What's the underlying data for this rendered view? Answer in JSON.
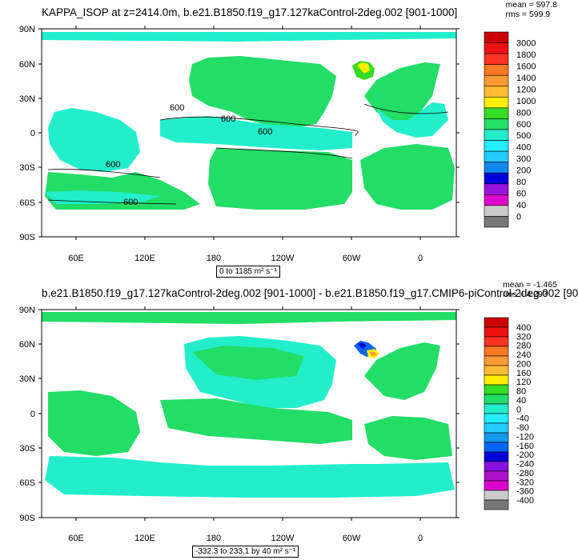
{
  "panel1": {
    "title": "KAPPA_ISOP at z=2414.0m, b.e21.B1850.f19_g17.127kaControl-2deg.002 [901-1000]",
    "mean_label": "mean = 597.8",
    "rms_label": "rms = 599.9",
    "range_label": "0 to 1185 m² s⁻¹",
    "contour_labels": [
      "600",
      "600",
      "600",
      "600",
      "600"
    ],
    "colorbar": {
      "labels": [
        "3000",
        "1800",
        "1600",
        "1400",
        "1200",
        "1000",
        "800",
        "600",
        "500",
        "400",
        "300",
        "200",
        "80",
        "60",
        "40",
        "0"
      ]
    }
  },
  "panel2": {
    "title": "b.e21.B1850.f19_g17.127kaControl-2deg.002 [901-1000] - b.e21.B1850.f19_g17.CMIP6-piControl-2deg.002 [90",
    "mean_label": "mean = -1.465",
    "rms_label": "rms = 4.293",
    "range_label": "-332.3 to 233.1 by 40 m² s⁻¹",
    "colorbar": {
      "labels": [
        "400",
        "320",
        "280",
        "240",
        "200",
        "160",
        "120",
        "80",
        "40",
        "0",
        "-40",
        "-80",
        "-120",
        "-160",
        "-200",
        "-240",
        "-280",
        "-320",
        "-360",
        "-400"
      ]
    }
  },
  "map": {
    "lat_labels": [
      "90N",
      "60N",
      "30N",
      "0",
      "30S",
      "60S",
      "90S"
    ],
    "lon_labels": [
      "60E",
      "120E",
      "180",
      "120W",
      "60W",
      "0"
    ]
  },
  "colors": {
    "colorbar1": [
      "#cc0000",
      "#ee1111",
      "#ff3322",
      "#ff7722",
      "#ff9933",
      "#ffbb33",
      "#ffee00",
      "#33dd22",
      "#22dd66",
      "#22eecc",
      "#22eeff",
      "#22ccff",
      "#1188ee",
      "#0000dd",
      "#9911dd",
      "#dd00cc",
      "#cccccc",
      "#777777"
    ],
    "colorbar2": [
      "#cc0000",
      "#ee1111",
      "#ff3322",
      "#ff7722",
      "#ff9933",
      "#ffbb33",
      "#ffee00",
      "#33dd22",
      "#22dd66",
      "#22eecc",
      "#22eeff",
      "#22ccff",
      "#1199ee",
      "#0066ff",
      "#0000dd",
      "#8811dd",
      "#aa11cc",
      "#dd00cc",
      "#cccccc",
      "#777777"
    ],
    "ocean_main_1": "#22dd66",
    "ocean_alt_1": "#22eecc",
    "ocean_main_2": "#22dd66",
    "ocean_alt_2": "#22eecc"
  }
}
